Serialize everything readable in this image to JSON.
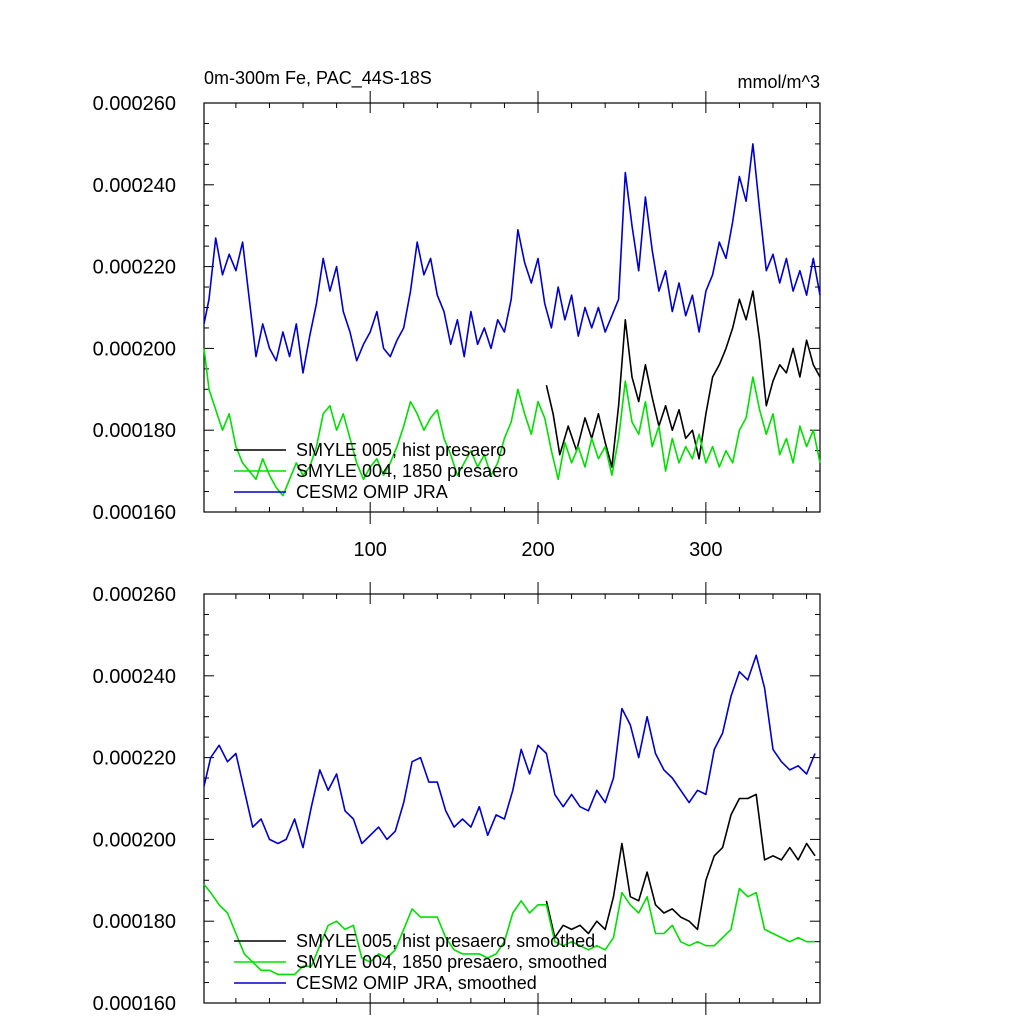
{
  "figure": {
    "title_left": "0m-300m Fe, PAC_44S-18S",
    "title_right": "mmol/m^3"
  },
  "colors": {
    "black": "#000000",
    "green": "#00e000",
    "blue": "#0000cc"
  },
  "chart_data": [
    {
      "type": "line",
      "title": "0m-300m Fe, PAC_44S-18S",
      "units": "mmol/m^3",
      "xlim": [
        1,
        368
      ],
      "ylim": [
        0.00016,
        0.00026
      ],
      "xticks": [
        100,
        200,
        300
      ],
      "xtick_labels": [
        "100",
        "200",
        "300"
      ],
      "yticks": [
        0.00016,
        0.00018,
        0.0002,
        0.00022,
        0.00024,
        0.00026
      ],
      "ytick_labels": [
        "0.000160",
        "0.000180",
        "0.000200",
        "0.000220",
        "0.000240",
        "0.000260"
      ],
      "legend_position": "bottom-left",
      "grid": false,
      "series": [
        {
          "name": "SMYLE 005, hist presaero",
          "color": "#000000",
          "x": [
            205,
            209,
            213,
            218,
            223,
            228,
            232,
            236,
            240,
            244,
            248,
            252,
            256,
            260,
            264,
            268,
            272,
            276,
            280,
            284,
            288,
            292,
            296,
            300,
            304,
            308,
            312,
            316,
            320,
            324,
            328,
            332,
            336,
            340,
            344,
            348,
            352,
            356,
            360,
            364,
            368
          ],
          "y": [
            0.000191,
            0.000184,
            0.000174,
            0.000181,
            0.000175,
            0.000183,
            0.000178,
            0.000184,
            0.000177,
            0.000171,
            0.000186,
            0.000207,
            0.000193,
            0.000187,
            0.000196,
            0.000188,
            0.000181,
            0.000186,
            0.00018,
            0.000185,
            0.000178,
            0.00018,
            0.000173,
            0.000184,
            0.000193,
            0.000196,
            0.0002,
            0.000205,
            0.000212,
            0.000207,
            0.000214,
            0.000202,
            0.000186,
            0.000192,
            0.000196,
            0.000194,
            0.0002,
            0.000193,
            0.000202,
            0.000196,
            0.000193
          ]
        },
        {
          "name": "SMYLE 004, 1850 presaero",
          "color": "#00e000",
          "x": [
            1,
            4,
            8,
            12,
            16,
            20,
            24,
            28,
            32,
            36,
            40,
            44,
            48,
            52,
            56,
            60,
            64,
            68,
            72,
            76,
            80,
            84,
            88,
            92,
            96,
            100,
            104,
            108,
            112,
            116,
            120,
            124,
            128,
            132,
            136,
            140,
            144,
            148,
            152,
            156,
            160,
            164,
            168,
            172,
            176,
            180,
            184,
            188,
            192,
            196,
            200,
            204,
            208,
            212,
            216,
            220,
            224,
            228,
            232,
            236,
            240,
            244,
            248,
            252,
            256,
            260,
            264,
            268,
            272,
            276,
            280,
            284,
            288,
            292,
            296,
            300,
            304,
            308,
            312,
            316,
            320,
            324,
            328,
            332,
            336,
            340,
            344,
            348,
            352,
            356,
            360,
            364,
            368
          ],
          "y": [
            0.0002,
            0.00019,
            0.000185,
            0.00018,
            0.000184,
            0.000176,
            0.000172,
            0.00017,
            0.000168,
            0.000173,
            0.000169,
            0.000166,
            0.000164,
            0.000168,
            0.000172,
            0.000169,
            0.000171,
            0.000176,
            0.000184,
            0.000186,
            0.00018,
            0.000184,
            0.000178,
            0.000172,
            0.000168,
            0.000171,
            0.000173,
            0.000169,
            0.000172,
            0.000176,
            0.000181,
            0.000187,
            0.000184,
            0.00018,
            0.000183,
            0.000185,
            0.000178,
            0.000174,
            0.000169,
            0.000172,
            0.000175,
            0.000171,
            0.000174,
            0.000169,
            0.000172,
            0.000178,
            0.000182,
            0.00019,
            0.000184,
            0.000179,
            0.000187,
            0.000183,
            0.000175,
            0.000168,
            0.000177,
            0.000172,
            0.000176,
            0.000171,
            0.000178,
            0.000173,
            0.000176,
            0.000169,
            0.000178,
            0.000192,
            0.000182,
            0.000179,
            0.000187,
            0.000176,
            0.000181,
            0.00017,
            0.000178,
            0.000172,
            0.000176,
            0.000173,
            0.000179,
            0.000172,
            0.000176,
            0.000171,
            0.000175,
            0.000172,
            0.00018,
            0.000183,
            0.000193,
            0.000185,
            0.000179,
            0.000184,
            0.000174,
            0.000178,
            0.000172,
            0.000181,
            0.000176,
            0.00018,
            0.000172
          ]
        },
        {
          "name": "CESM2 OMIP JRA",
          "color": "#0000cc",
          "x": [
            1,
            4,
            8,
            12,
            16,
            20,
            24,
            28,
            32,
            36,
            40,
            44,
            48,
            52,
            56,
            60,
            64,
            68,
            72,
            76,
            80,
            84,
            88,
            92,
            96,
            100,
            104,
            108,
            112,
            116,
            120,
            124,
            128,
            132,
            136,
            140,
            144,
            148,
            152,
            156,
            160,
            164,
            168,
            172,
            176,
            180,
            184,
            188,
            192,
            196,
            200,
            204,
            208,
            212,
            216,
            220,
            224,
            228,
            232,
            236,
            240,
            244,
            248,
            252,
            256,
            260,
            264,
            268,
            272,
            276,
            280,
            284,
            288,
            292,
            296,
            300,
            304,
            308,
            312,
            316,
            320,
            324,
            328,
            332,
            336,
            340,
            344,
            348,
            352,
            356,
            360,
            364,
            368
          ],
          "y": [
            0.000206,
            0.000212,
            0.000227,
            0.000218,
            0.000223,
            0.000219,
            0.000226,
            0.000212,
            0.000198,
            0.000206,
            0.0002,
            0.000197,
            0.000204,
            0.000198,
            0.000206,
            0.000194,
            0.000203,
            0.000211,
            0.000222,
            0.000214,
            0.00022,
            0.000209,
            0.000204,
            0.000197,
            0.000201,
            0.000204,
            0.000209,
            0.0002,
            0.000198,
            0.000202,
            0.000205,
            0.000214,
            0.000226,
            0.000218,
            0.000222,
            0.000213,
            0.000209,
            0.000201,
            0.000207,
            0.000198,
            0.000209,
            0.000201,
            0.000205,
            0.0002,
            0.000207,
            0.000204,
            0.000212,
            0.000229,
            0.000221,
            0.000216,
            0.000222,
            0.000211,
            0.000205,
            0.000215,
            0.000207,
            0.000213,
            0.000203,
            0.00021,
            0.000205,
            0.00021,
            0.000204,
            0.000208,
            0.000212,
            0.000243,
            0.00023,
            0.000219,
            0.000237,
            0.000224,
            0.000214,
            0.000219,
            0.000209,
            0.000216,
            0.000208,
            0.000213,
            0.000204,
            0.000214,
            0.000218,
            0.000226,
            0.000222,
            0.000231,
            0.000242,
            0.000236,
            0.00025,
            0.000234,
            0.000219,
            0.000223,
            0.000216,
            0.000222,
            0.000214,
            0.000219,
            0.000213,
            0.000222,
            0.000213
          ]
        }
      ]
    },
    {
      "type": "line",
      "xlim": [
        1,
        368
      ],
      "ylim": [
        0.00016,
        0.00026
      ],
      "xticks": [
        100,
        200,
        300
      ],
      "xtick_labels": [],
      "yticks": [
        0.00016,
        0.00018,
        0.0002,
        0.00022,
        0.00024,
        0.00026
      ],
      "ytick_labels": [
        "0.000160",
        "0.000180",
        "0.000200",
        "0.000220",
        "0.000240",
        "0.000260"
      ],
      "legend_position": "bottom-left",
      "grid": false,
      "series": [
        {
          "name": "SMYLE 005, hist presaero, smoothed",
          "color": "#000000",
          "x": [
            205,
            210,
            215,
            220,
            225,
            230,
            235,
            240,
            245,
            250,
            255,
            260,
            265,
            270,
            275,
            280,
            285,
            290,
            295,
            300,
            305,
            310,
            315,
            320,
            325,
            330,
            335,
            340,
            345,
            350,
            355,
            360,
            365
          ],
          "y": [
            0.000185,
            0.000176,
            0.000179,
            0.000178,
            0.000179,
            0.000177,
            0.00018,
            0.000178,
            0.000186,
            0.000199,
            0.000186,
            0.000185,
            0.000192,
            0.000184,
            0.000182,
            0.000183,
            0.000181,
            0.00018,
            0.000178,
            0.00019,
            0.000196,
            0.000198,
            0.000206,
            0.00021,
            0.00021,
            0.000211,
            0.000195,
            0.000196,
            0.000195,
            0.000198,
            0.000195,
            0.000199,
            0.000196
          ]
        },
        {
          "name": "SMYLE 004, 1850 presaero, smoothed",
          "color": "#00e000",
          "x": [
            1,
            5,
            10,
            15,
            20,
            25,
            30,
            35,
            40,
            45,
            50,
            55,
            60,
            65,
            70,
            75,
            80,
            85,
            90,
            95,
            100,
            105,
            110,
            115,
            120,
            125,
            130,
            135,
            140,
            145,
            150,
            155,
            160,
            165,
            170,
            175,
            180,
            185,
            190,
            195,
            200,
            205,
            210,
            215,
            220,
            225,
            230,
            235,
            240,
            245,
            250,
            255,
            260,
            265,
            270,
            275,
            280,
            285,
            290,
            295,
            300,
            305,
            310,
            315,
            320,
            325,
            330,
            335,
            340,
            345,
            350,
            355,
            360,
            365
          ],
          "y": [
            0.000189,
            0.000187,
            0.000184,
            0.000182,
            0.000177,
            0.000172,
            0.00017,
            0.000168,
            0.000168,
            0.000167,
            0.000167,
            0.000167,
            0.000169,
            0.000169,
            0.000174,
            0.000179,
            0.00018,
            0.000178,
            0.000179,
            0.000171,
            0.00017,
            0.000172,
            0.000171,
            0.000173,
            0.000178,
            0.000183,
            0.000181,
            0.000181,
            0.000181,
            0.000176,
            0.000173,
            0.000172,
            0.000172,
            0.000172,
            0.000171,
            0.000172,
            0.000175,
            0.000182,
            0.000185,
            0.000182,
            0.000184,
            0.000184,
            0.000175,
            0.000174,
            0.000175,
            0.000174,
            0.000173,
            0.000174,
            0.000173,
            0.000176,
            0.000187,
            0.000184,
            0.000182,
            0.000186,
            0.000177,
            0.000177,
            0.000179,
            0.000175,
            0.000174,
            0.000175,
            0.000174,
            0.000174,
            0.000176,
            0.000178,
            0.000188,
            0.000186,
            0.000187,
            0.000178,
            0.000177,
            0.000176,
            0.000175,
            0.000176,
            0.000175,
            0.000175
          ]
        },
        {
          "name": "CESM2 OMIP JRA, smoothed",
          "color": "#0000cc",
          "x": [
            1,
            5,
            10,
            15,
            20,
            25,
            30,
            35,
            40,
            45,
            50,
            55,
            60,
            65,
            70,
            75,
            80,
            85,
            90,
            95,
            100,
            105,
            110,
            115,
            120,
            125,
            130,
            135,
            140,
            145,
            150,
            155,
            160,
            165,
            170,
            175,
            180,
            185,
            190,
            195,
            200,
            205,
            210,
            215,
            220,
            225,
            230,
            235,
            240,
            245,
            250,
            255,
            260,
            265,
            270,
            275,
            280,
            285,
            290,
            295,
            300,
            305,
            310,
            315,
            320,
            325,
            330,
            335,
            340,
            345,
            350,
            355,
            360,
            365
          ],
          "y": [
            0.000213,
            0.00022,
            0.000223,
            0.000219,
            0.000221,
            0.000212,
            0.000203,
            0.000205,
            0.0002,
            0.000199,
            0.0002,
            0.000205,
            0.000198,
            0.000208,
            0.000217,
            0.000212,
            0.000216,
            0.000207,
            0.000205,
            0.000199,
            0.000201,
            0.000203,
            0.0002,
            0.000202,
            0.000209,
            0.000219,
            0.00022,
            0.000214,
            0.000214,
            0.000207,
            0.000203,
            0.000205,
            0.000203,
            0.000208,
            0.000201,
            0.000206,
            0.000205,
            0.000212,
            0.000222,
            0.000216,
            0.000223,
            0.000221,
            0.000211,
            0.000208,
            0.000211,
            0.000208,
            0.000207,
            0.000212,
            0.000209,
            0.000215,
            0.000232,
            0.000228,
            0.00022,
            0.00023,
            0.000221,
            0.000217,
            0.000215,
            0.000212,
            0.000209,
            0.000212,
            0.000211,
            0.000222,
            0.000226,
            0.000235,
            0.000241,
            0.000239,
            0.000245,
            0.000237,
            0.000222,
            0.000219,
            0.000217,
            0.000218,
            0.000216,
            0.000221
          ]
        }
      ]
    }
  ]
}
